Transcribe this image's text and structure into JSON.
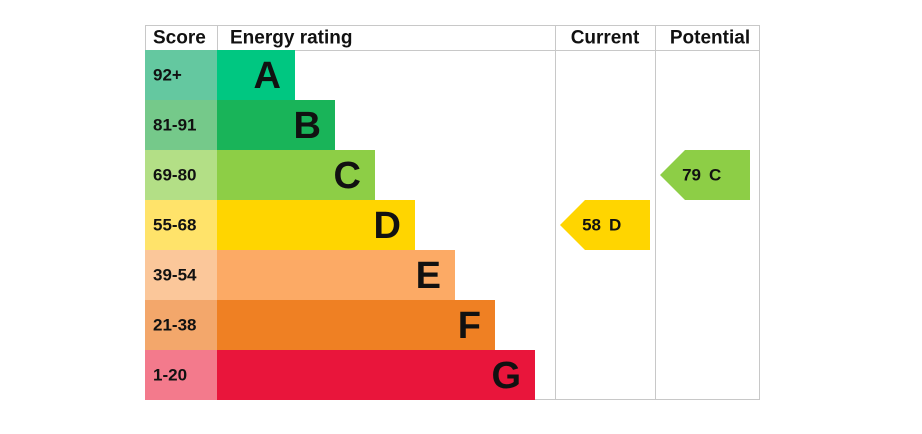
{
  "header": {
    "score": "Score",
    "rating": "Energy rating",
    "current": "Current",
    "potential": "Potential"
  },
  "rows": [
    {
      "score": "92+",
      "rating": "A"
    },
    {
      "score": "81-91",
      "rating": "B"
    },
    {
      "score": "69-80",
      "rating": "C"
    },
    {
      "score": "55-68",
      "rating": "D"
    },
    {
      "score": "39-54",
      "rating": "E"
    },
    {
      "score": "21-38",
      "rating": "F"
    },
    {
      "score": "1-20",
      "rating": "G"
    }
  ],
  "current": {
    "score": 58,
    "rating": "D"
  },
  "potential": {
    "score": 79,
    "rating": "C"
  }
}
